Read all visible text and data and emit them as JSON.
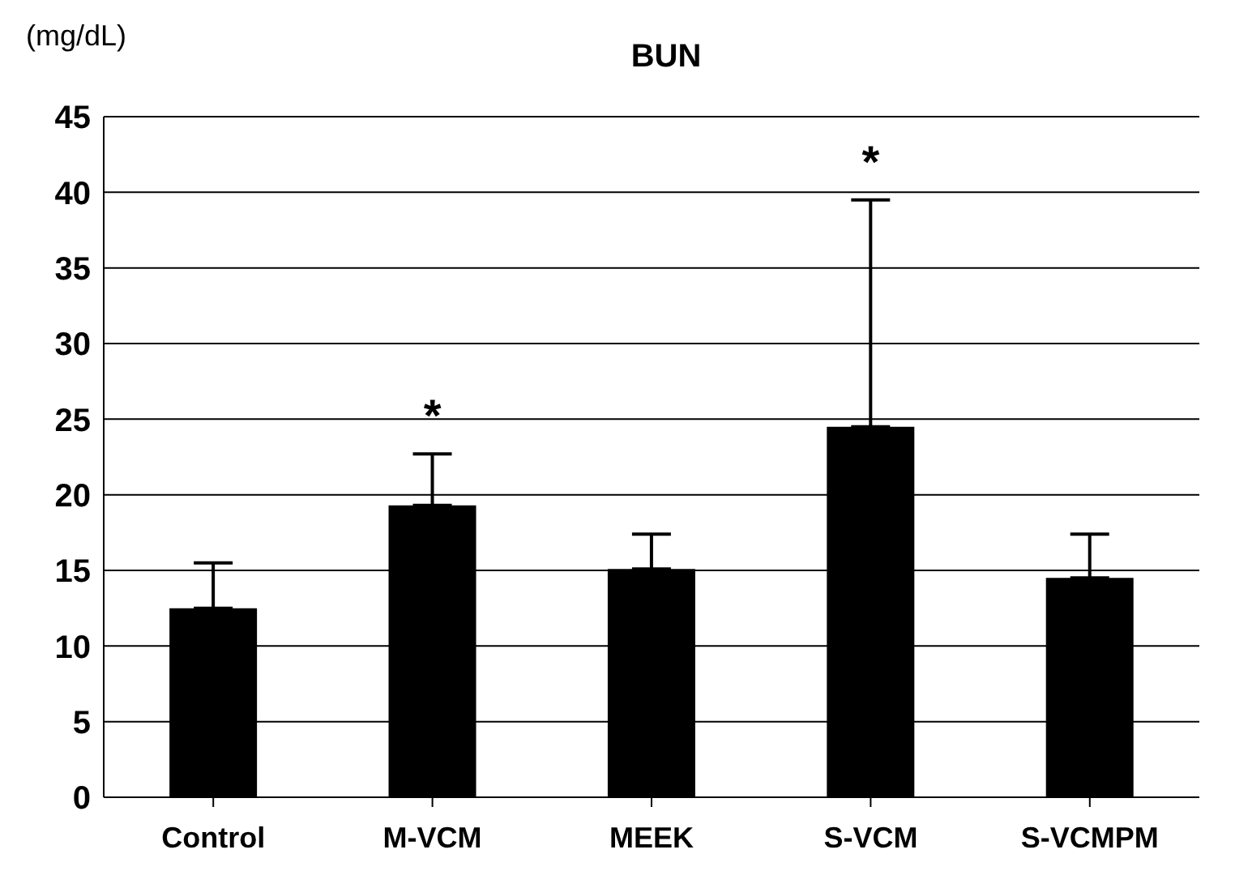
{
  "chart_data": {
    "type": "bar",
    "title": "BUN",
    "ylabel": "(mg/dL)",
    "categories": [
      "Control",
      "M-VCM",
      "MEEK",
      "S-VCM",
      "S-VCMPM"
    ],
    "values": [
      12.5,
      19.3,
      15.1,
      24.5,
      14.5
    ],
    "errors": [
      [
        12.5,
        15.5
      ],
      [
        19.3,
        22.7
      ],
      [
        15.1,
        17.4
      ],
      [
        24.5,
        39.5
      ],
      [
        14.5,
        17.4
      ]
    ],
    "color": "#000000",
    "ylim": [
      0,
      45
    ],
    "yticks": [
      0,
      5,
      10,
      15,
      20,
      25,
      30,
      35,
      40,
      45
    ],
    "grid": "y",
    "annotations": [
      {
        "text": "*",
        "x": "M-VCM",
        "y": 22.7
      },
      {
        "text": "*",
        "x": "S-VCM",
        "y": 39.5
      }
    ]
  }
}
